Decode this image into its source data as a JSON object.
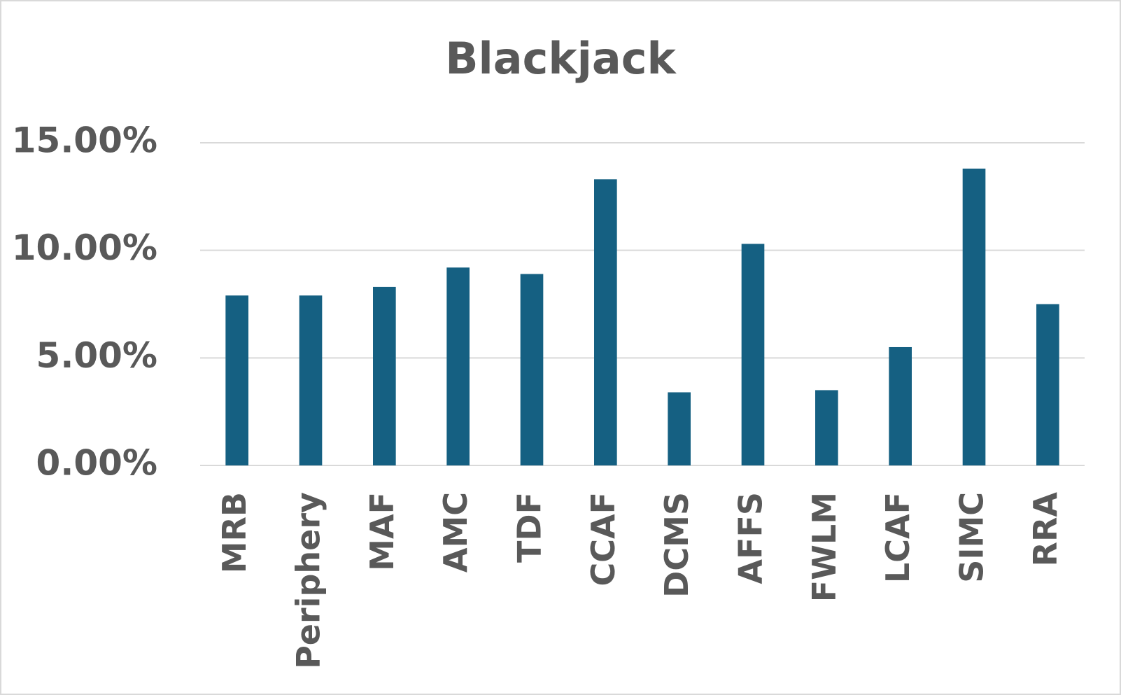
{
  "chart_data": {
    "type": "bar",
    "title": "Blackjack",
    "categories": [
      "MRB",
      "Periphery",
      "MAF",
      "AMC",
      "TDF",
      "CCAF",
      "DCMS",
      "AFFS",
      "FWLM",
      "LCAF",
      "SIMC",
      "RRA"
    ],
    "values": [
      7.9,
      7.9,
      8.3,
      9.2,
      8.9,
      13.3,
      3.4,
      10.3,
      3.5,
      5.5,
      13.8,
      7.5
    ],
    "color": "#156082",
    "ylim": [
      0,
      15
    ],
    "yticks": [
      {
        "value": 0,
        "label": "0.00%"
      },
      {
        "value": 5,
        "label": "5.00%"
      },
      {
        "value": 10,
        "label": "10.00%"
      },
      {
        "value": 15,
        "label": "15.00%"
      }
    ],
    "grid": true
  }
}
